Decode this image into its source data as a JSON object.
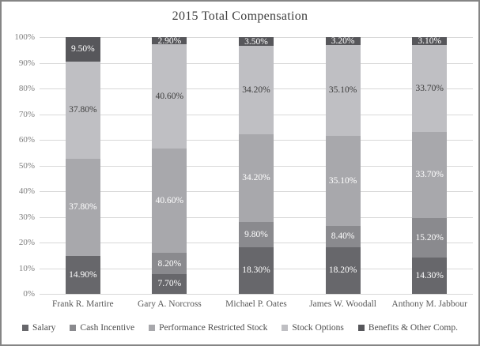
{
  "chart_data": {
    "type": "bar",
    "stacked": true,
    "orientation": "vertical",
    "title": "2015 Total Compensation",
    "categories": [
      "Frank R. Martire",
      "Gary A. Norcross",
      "Michael P. Oates",
      "James W. Woodall",
      "Anthony M. Jabbour"
    ],
    "series": [
      {
        "name": "Salary",
        "color": "#67676b",
        "label_color": "#ffffff",
        "values": [
          14.9,
          7.7,
          18.3,
          18.2,
          14.3
        ]
      },
      {
        "name": "Cash Incentive",
        "color": "#8a8a8e",
        "label_color": "#ffffff",
        "values": [
          0,
          8.2,
          9.8,
          8.4,
          15.2
        ]
      },
      {
        "name": "Performance Restricted Stock",
        "color": "#a8a8ac",
        "label_color": "#ffffff",
        "values": [
          37.8,
          40.6,
          34.2,
          35.1,
          33.7
        ]
      },
      {
        "name": "Stock Options",
        "color": "#bfbfc3",
        "label_color": "#3c3c3c",
        "values": [
          37.8,
          40.6,
          34.2,
          35.1,
          33.7
        ]
      },
      {
        "name": "Benefits & Other Comp.",
        "color": "#57575b",
        "label_color": "#ffffff",
        "values": [
          9.5,
          2.9,
          3.5,
          3.2,
          3.1
        ]
      }
    ],
    "data_label_format": "0.00%",
    "y_ticks": [
      "100%",
      "90%",
      "80%",
      "70%",
      "60%",
      "50%",
      "40%",
      "30%",
      "20%",
      "10%",
      "0%"
    ],
    "ylim": [
      0,
      100
    ],
    "grid": true,
    "gridline_color": "#d8d8d8",
    "legend_position": "bottom"
  }
}
